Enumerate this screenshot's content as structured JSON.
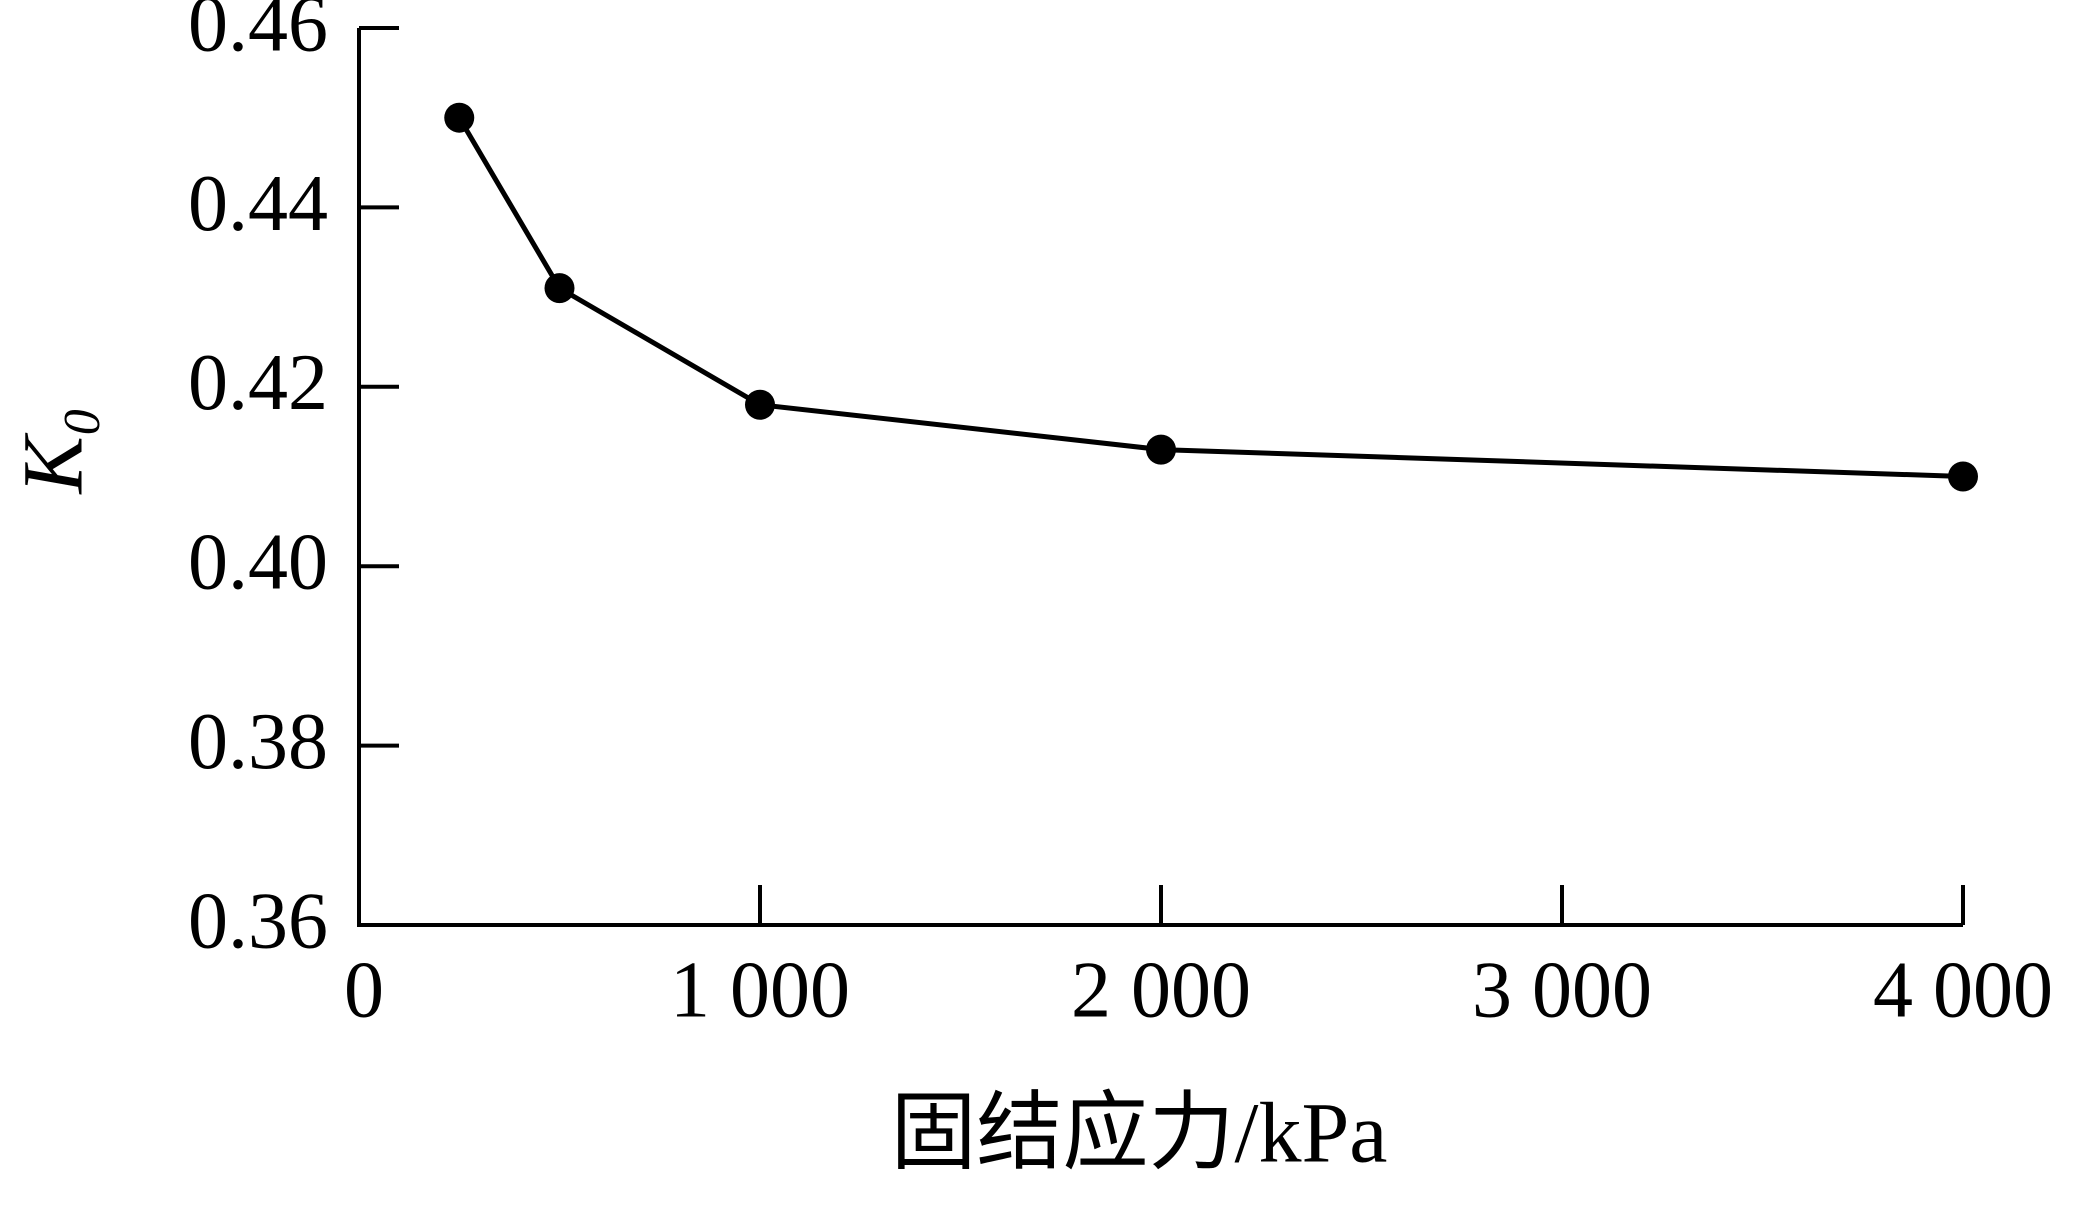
{
  "chart_data": {
    "type": "line",
    "x_label": "固结应力/kPa",
    "y_label": "K₀",
    "x": [
      250,
      500,
      1000,
      2000,
      4000
    ],
    "series": [
      {
        "color": "#000000",
        "values": [
          0.45,
          0.431,
          0.418,
          0.413,
          0.41
        ]
      }
    ],
    "xlim": [
      0,
      4000
    ],
    "xticks": [
      0,
      {
        "value": 1000,
        "label": "1 000"
      },
      {
        "value": 2000,
        "label": "2 000"
      },
      {
        "value": 3000,
        "label": "3 000"
      },
      {
        "value": 4000,
        "label": "4 000"
      }
    ],
    "ylim": [
      0.36,
      0.46
    ],
    "yticks": [
      0.36,
      0.38,
      {
        "value": 0.4,
        "label": "0.40"
      },
      0.42,
      0.44,
      0.46
    ],
    "grid": false
  }
}
